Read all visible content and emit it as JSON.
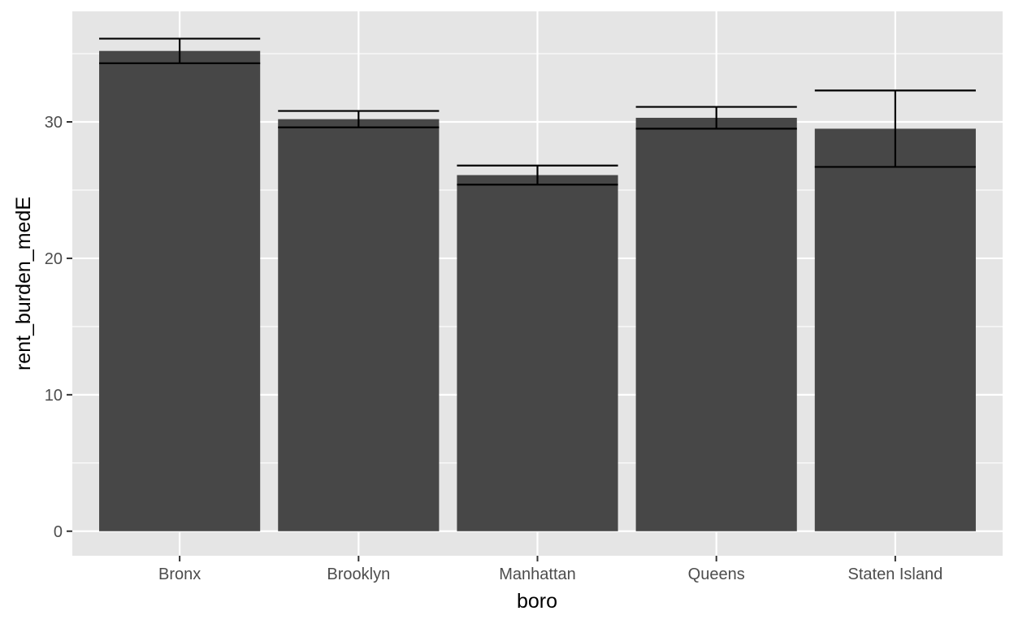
{
  "chart_data": {
    "type": "bar",
    "title": "",
    "xlabel": "boro",
    "ylabel": "rent_burden_medE",
    "categories": [
      "Bronx",
      "Brooklyn",
      "Manhattan",
      "Queens",
      "Staten Island"
    ],
    "values": [
      35.2,
      30.2,
      26.1,
      30.3,
      29.5
    ],
    "error_low": [
      34.3,
      29.6,
      25.4,
      29.5,
      26.7
    ],
    "error_high": [
      36.1,
      30.8,
      26.8,
      31.1,
      32.3
    ],
    "ylim": [
      -1.8,
      38.1
    ],
    "yticks": [
      0,
      10,
      20,
      30
    ],
    "grid": true,
    "legend": "none",
    "colors": {
      "bar": "#474747",
      "panel": "#e5e5e5",
      "grid": "#ffffff",
      "errorbar": "#000000"
    }
  }
}
